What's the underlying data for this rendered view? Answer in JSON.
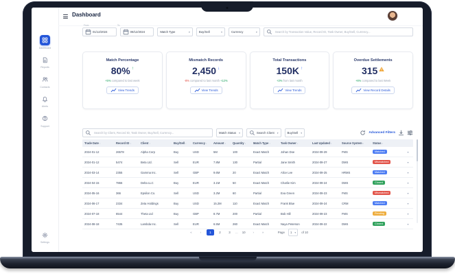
{
  "colors": {
    "accent": "#2456d9",
    "value_navy": "#212e63",
    "positive": "#18a05c",
    "negative": "#e0483f",
    "warning": "#f0a73a"
  },
  "app": {
    "header": {
      "title": "Dashboard"
    },
    "sidebar": {
      "items": [
        {
          "id": "dashboard",
          "icon": "dashboard",
          "label": "Dashboard",
          "active": true
        },
        {
          "id": "reports",
          "icon": "reports",
          "label": "Reports",
          "active": false
        },
        {
          "id": "contacts",
          "icon": "contacts",
          "label": "Contacts",
          "active": false
        },
        {
          "id": "alerts",
          "icon": "alerts",
          "label": "Alerts",
          "active": false
        },
        {
          "id": "support",
          "icon": "support",
          "label": "Support",
          "active": false
        }
      ],
      "settings_label": "Settings"
    },
    "filters": {
      "from_label": "From",
      "to_label": "To",
      "date_from": "01/12/2024",
      "date_to": "09/12/2024",
      "dropdowns": [
        "Match Type",
        "Buy/Sell",
        "Currency"
      ],
      "search_placeholder": "Search by Transaction Value, Record ID, Task Owner, Buy/Sell, Currency..."
    },
    "cards": [
      {
        "title": "Match Percentage",
        "value": "80%",
        "trend": "up",
        "trend_color": "#18a05c",
        "delta": "+5%",
        "delta_color": "#18a05c",
        "subtitle": "compared to last week",
        "button": "View Trends"
      },
      {
        "title": "Mismatch Records",
        "value": "2,450",
        "trend": "down",
        "trend_color": "#3f74f6",
        "delta": "-8%",
        "delta_color": "#e0483f",
        "subtitle": "compared to last month",
        "extra": "+12%",
        "extra_color": "#18a05c",
        "button": "View Trends"
      },
      {
        "title": "Total Transactions",
        "value": "150K",
        "trend": "up",
        "trend_color": "#3f74f6",
        "delta": "+3%",
        "delta_color": "#18a05c",
        "subtitle": "from last month",
        "button": "View Trends"
      },
      {
        "title": "Overdue Settlements",
        "value": "315",
        "trend": "warning",
        "trend_color": "#f0a73a",
        "delta": "+6%",
        "delta_color": "#18a05c",
        "subtitle": "compared to last Week",
        "button": "View Record Details"
      }
    ],
    "table": {
      "controls": {
        "search_placeholder": "Search by Client, Record ID, Task Owner, Buy/Sell, Currency...",
        "match_status_label": "Match Status",
        "search_client_label": "Search Client",
        "buy_sell_label": "Buy/Sell",
        "advanced_filters_label": "Advanced Filters"
      },
      "columns": [
        "Trade Date",
        "Record ID",
        "Client",
        "Buy/Sell",
        "Currency",
        "Amount",
        "Quantity",
        "Match Type",
        "Task Owner",
        "Last Updated",
        "Source System",
        "Status"
      ],
      "status_colors": {
        "Matched": "#4c7cf3",
        "Mismatched": "#e2544a",
        "Closed": "#2fa15c",
        "Pending": "#eead3d"
      },
      "rows": [
        {
          "cells": [
            "2024-01-12",
            "26578",
            "Alpha Corp",
            "Buy",
            "USD",
            "5M",
            "100",
            "Exact Match",
            "Johan Doe",
            "2024-09-29",
            "FMS"
          ],
          "status": "Matched"
        },
        {
          "cells": [
            "2024-01-12",
            "5474",
            "Beta Ltd.",
            "Sell",
            "EUR",
            "7.8M",
            "130",
            "Partial",
            "Jane Smith",
            "2024-09-27",
            "DMS"
          ],
          "status": "Mismatched"
        },
        {
          "cells": [
            "2024-03-14",
            "2355",
            "Gamma Inc.",
            "Sell",
            "GBP",
            "9.6M",
            "20",
            "Exact Match",
            "Alice Lee",
            "2024-09-25",
            "HRMS"
          ],
          "status": "Matched"
        },
        {
          "cells": [
            "2024-04-15",
            "7866",
            "Delta LLC",
            "Buy",
            "EUR",
            "3.1M",
            "50",
            "Exact Match",
            "Charlie Kim",
            "2024-09-24",
            "DMS"
          ],
          "status": "Closed"
        },
        {
          "cells": [
            "2024-05-16",
            "366",
            "Epsilon Co.",
            "Sell",
            "USD",
            "3.2M",
            "60",
            "Partial",
            "Eva Green",
            "2024-09-23",
            "FMS"
          ],
          "status": "Mismatched"
        },
        {
          "cells": [
            "2024-06-17",
            "2334",
            "Zeta Holdings",
            "Buy",
            "USD",
            "15.2M",
            "110",
            "Exact Match",
            "Frank Blue",
            "2024-09-24",
            "CRM"
          ],
          "status": "Matched"
        },
        {
          "cells": [
            "2024-07-18",
            "6544",
            "Theta Ltd",
            "Buy",
            "GBP",
            "8.7M",
            "200",
            "Partial",
            "Bob Hill",
            "2024-09-23",
            "FMS"
          ],
          "status": "Pending"
        },
        {
          "cells": [
            "2024-08-18",
            "7435",
            "Lambda Inc.",
            "Sell",
            "EUR",
            "6.5M",
            "260",
            "Exact Match",
            "Naya Peterson",
            "2024-09-22",
            "DMS"
          ],
          "status": "Closed"
        }
      ],
      "pagination": {
        "first": "«",
        "prev": "‹",
        "pages": [
          "1",
          "2",
          "3",
          "...",
          "10"
        ],
        "active": "1",
        "next": "›",
        "last": "»",
        "page_label": "Page",
        "page_value": "1",
        "of_label": "of 10"
      }
    }
  }
}
